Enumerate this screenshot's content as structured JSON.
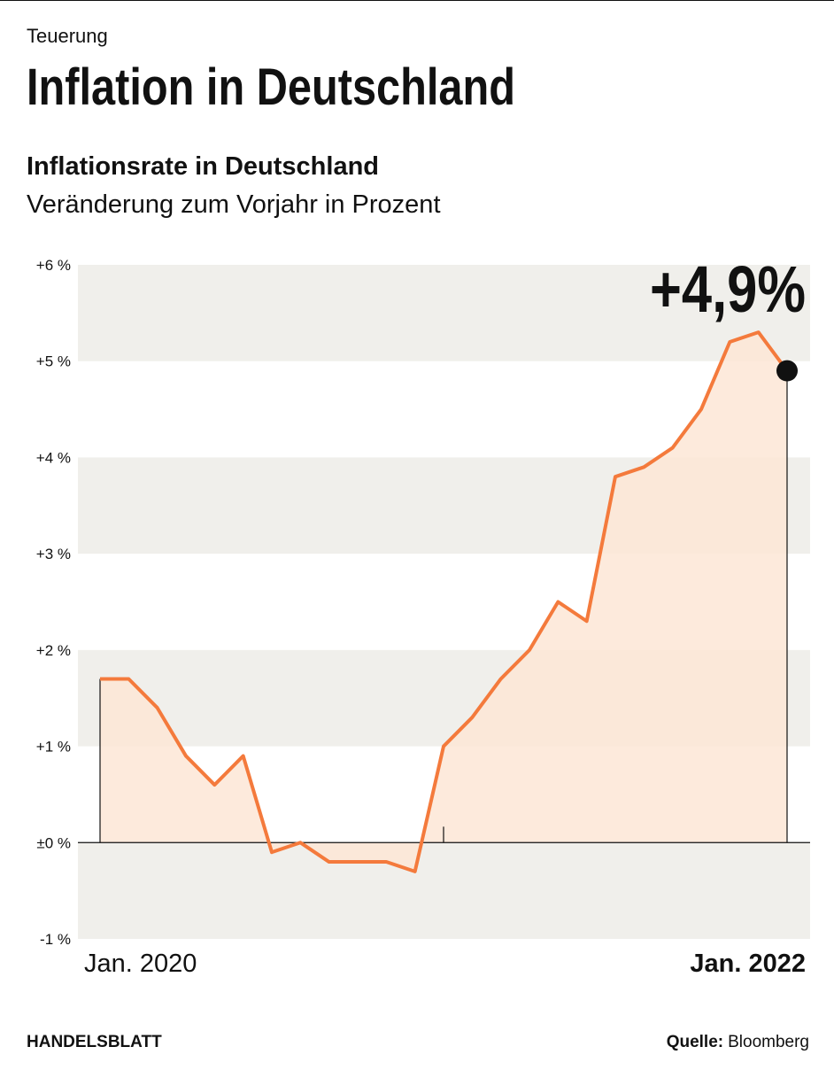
{
  "kicker": "Teuerung",
  "headline": "Inflation in Deutschland",
  "brand": "HANDELSBLATT",
  "source_label": "Quelle:",
  "source": "Bloomberg",
  "chart_data": {
    "type": "line",
    "title": "Inflationsrate in Deutschland",
    "subtitle": "Veränderung zum Vorjahr in Prozent",
    "categories": [
      "Jan. 2020",
      null,
      null,
      null,
      null,
      null,
      null,
      null,
      null,
      null,
      null,
      null,
      null,
      null,
      null,
      null,
      null,
      null,
      null,
      null,
      null,
      null,
      null,
      null,
      "Jan. 2022"
    ],
    "series": [
      {
        "name": "Inflationsrate",
        "color": "#f47a3c",
        "area_color": "#fde6d6",
        "values": [
          1.7,
          1.7,
          1.4,
          0.9,
          0.6,
          0.9,
          -0.1,
          0.0,
          -0.2,
          -0.2,
          -0.2,
          -0.3,
          1.0,
          1.3,
          1.7,
          2.0,
          2.5,
          2.3,
          3.8,
          3.9,
          4.1,
          4.5,
          5.2,
          5.3,
          4.9
        ],
        "value_labels": [
          null,
          null,
          null,
          null,
          null,
          null,
          null,
          null,
          null,
          null,
          null,
          null,
          null,
          null,
          null,
          null,
          null,
          null,
          null,
          null,
          null,
          null,
          null,
          null,
          "+4,9%"
        ]
      }
    ],
    "ylim": [
      -1,
      6
    ],
    "yticks": [
      {
        "value": -1,
        "label": "-1 %"
      },
      {
        "value": 0,
        "label": "±0 %"
      },
      {
        "value": 1,
        "label": "+1 %"
      },
      {
        "value": 2,
        "label": "+2 %"
      },
      {
        "value": 3,
        "label": "+3 %"
      },
      {
        "value": 4,
        "label": "+4 %"
      },
      {
        "value": 5,
        "label": "+5 %"
      },
      {
        "value": 6,
        "label": "+6 %"
      }
    ],
    "band_color": "#f0efeb"
  }
}
